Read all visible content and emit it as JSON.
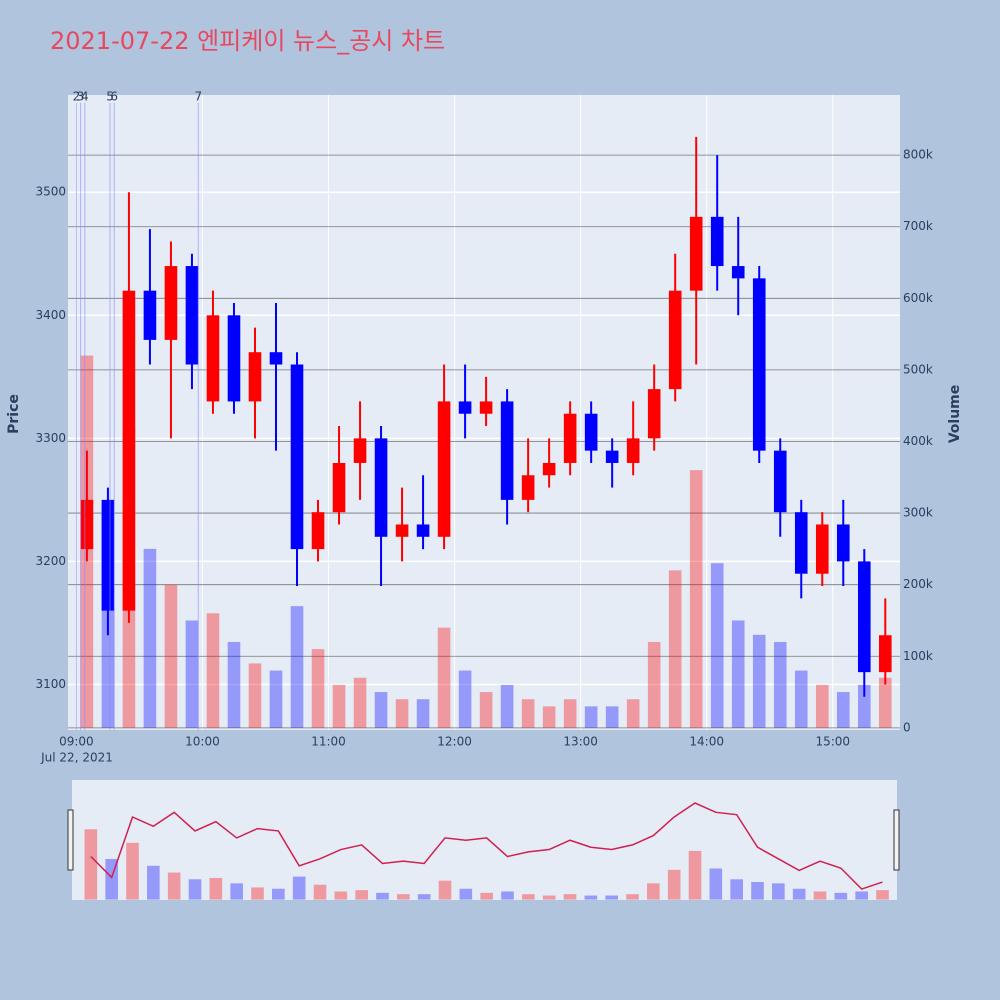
{
  "chart_data": {
    "type": "candlestick",
    "title": "2021-07-22 엔피케이 뉴스_공시 차트",
    "ylabel": "Price",
    "y2label": "Volume",
    "x_date_label": "Jul 22, 2021",
    "up_color": "#ff0000",
    "down_color": "#0000ff",
    "x": [
      "2021-07-22 09:00",
      "2021-07-22 09:10",
      "2021-07-22 09:20",
      "2021-07-22 09:30",
      "2021-07-22 09:40",
      "2021-07-22 09:50",
      "2021-07-22 10:00",
      "2021-07-22 10:10",
      "2021-07-22 10:20",
      "2021-07-22 10:30",
      "2021-07-22 10:40",
      "2021-07-22 10:50",
      "2021-07-22 11:00",
      "2021-07-22 11:10",
      "2021-07-22 11:20",
      "2021-07-22 11:30",
      "2021-07-22 11:40",
      "2021-07-22 11:50",
      "2021-07-22 12:00",
      "2021-07-22 12:10",
      "2021-07-22 12:20",
      "2021-07-22 12:30",
      "2021-07-22 12:40",
      "2021-07-22 12:50",
      "2021-07-22 13:00",
      "2021-07-22 13:10",
      "2021-07-22 13:20",
      "2021-07-22 13:30",
      "2021-07-22 13:40",
      "2021-07-22 13:50",
      "2021-07-22 14:00",
      "2021-07-22 14:10",
      "2021-07-22 14:20",
      "2021-07-22 14:30",
      "2021-07-22 14:40",
      "2021-07-22 14:50",
      "2021-07-22 15:00",
      "2021-07-22 15:10",
      "2021-07-22 15:20"
    ],
    "open": [
      3210,
      3250,
      3160,
      3420,
      3380,
      3440,
      3330,
      3400,
      3330,
      3370,
      3360,
      3210,
      3240,
      3280,
      3300,
      3220,
      3230,
      3220,
      3330,
      3320,
      3330,
      3250,
      3270,
      3280,
      3320,
      3290,
      3280,
      3300,
      3340,
      3420,
      3480,
      3440,
      3430,
      3290,
      3240,
      3190,
      3230,
      3200,
      3110
    ],
    "high": [
      3290,
      3260,
      3500,
      3470,
      3460,
      3450,
      3420,
      3410,
      3390,
      3410,
      3370,
      3250,
      3310,
      3330,
      3310,
      3260,
      3270,
      3360,
      3360,
      3350,
      3340,
      3300,
      3300,
      3330,
      3330,
      3300,
      3330,
      3360,
      3450,
      3545,
      3530,
      3480,
      3440,
      3300,
      3250,
      3240,
      3250,
      3210,
      3170
    ],
    "low": [
      3200,
      3140,
      3150,
      3360,
      3300,
      3340,
      3320,
      3320,
      3300,
      3290,
      3180,
      3200,
      3230,
      3250,
      3180,
      3200,
      3210,
      3210,
      3300,
      3310,
      3230,
      3240,
      3260,
      3270,
      3280,
      3260,
      3270,
      3290,
      3330,
      3360,
      3420,
      3400,
      3280,
      3220,
      3170,
      3180,
      3180,
      3090,
      3100
    ],
    "close": [
      3250,
      3160,
      3420,
      3380,
      3440,
      3360,
      3400,
      3330,
      3370,
      3360,
      3210,
      3240,
      3280,
      3300,
      3220,
      3230,
      3220,
      3330,
      3320,
      3330,
      3250,
      3270,
      3280,
      3320,
      3290,
      3280,
      3300,
      3340,
      3420,
      3480,
      3440,
      3430,
      3290,
      3240,
      3190,
      3230,
      3200,
      3110,
      3140
    ],
    "volume": [
      520000,
      300000,
      420000,
      250000,
      200000,
      150000,
      160000,
      120000,
      90000,
      80000,
      170000,
      110000,
      60000,
      70000,
      50000,
      40000,
      40000,
      140000,
      80000,
      50000,
      60000,
      40000,
      30000,
      40000,
      30000,
      30000,
      40000,
      120000,
      220000,
      360000,
      230000,
      150000,
      130000,
      120000,
      80000,
      60000,
      50000,
      60000,
      70000
    ],
    "xlim": [
      "2021-07-22 08:56",
      "2021-07-22 15:32"
    ],
    "xticks": [
      {
        "value": "2021-07-22 09:00",
        "label": "09:00"
      },
      {
        "value": "2021-07-22 10:00",
        "label": "10:00"
      },
      {
        "value": "2021-07-22 11:00",
        "label": "11:00"
      },
      {
        "value": "2021-07-22 12:00",
        "label": "12:00"
      },
      {
        "value": "2021-07-22 13:00",
        "label": "13:00"
      },
      {
        "value": "2021-07-22 14:00",
        "label": "14:00"
      },
      {
        "value": "2021-07-22 15:00",
        "label": "15:00"
      }
    ],
    "ylim": [
      3063,
      3579
    ],
    "yticks": [
      3100,
      3200,
      3300,
      3400,
      3500
    ],
    "y2lim": [
      -3000,
      884000
    ],
    "y2ticks": [
      0,
      {
        "value": 100000,
        "label": "100k"
      },
      {
        "value": 200000,
        "label": "200k"
      },
      {
        "value": 300000,
        "label": "300k"
      },
      {
        "value": 400000,
        "label": "400k"
      },
      {
        "value": 500000,
        "label": "500k"
      },
      {
        "value": 600000,
        "label": "600k"
      },
      {
        "value": 700000,
        "label": "700k"
      },
      {
        "value": 800000,
        "label": "800k"
      }
    ],
    "annotations": [
      {
        "x": "2021-07-22 09:00",
        "text": "2"
      },
      {
        "x": "2021-07-22 09:02",
        "text": "3"
      },
      {
        "x": "2021-07-22 09:04",
        "text": "4"
      },
      {
        "x": "2021-07-22 09:16",
        "text": "5"
      },
      {
        "x": "2021-07-22 09:18",
        "text": "6"
      },
      {
        "x": "2021-07-22 09:58",
        "text": "7"
      }
    ]
  }
}
